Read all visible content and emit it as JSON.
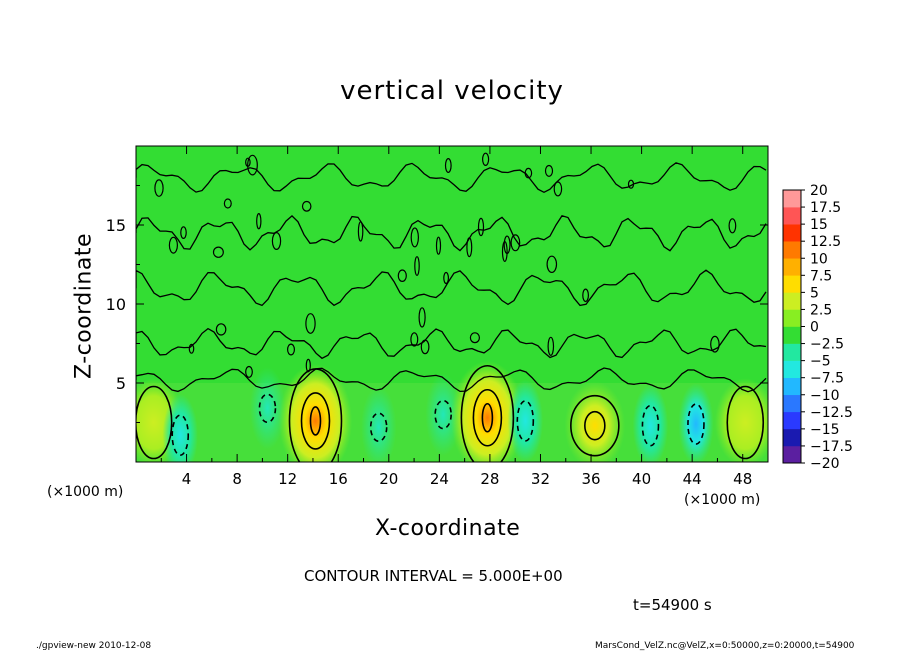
{
  "footer": {
    "left": "./gpview-new  2010-12-08",
    "right": "MarsCond_VelZ.nc@VelZ,x=0:50000,z=0:20000,t=54900"
  },
  "contour_interval": "CONTOUR INTERVAL = 5.000E+00",
  "time_label": "t=54900 s",
  "x_unit": "(×1000 m)",
  "y_unit": "(×1000 m)",
  "colors": {
    "background_green": "#33dd33",
    "palette": [
      "#5b1fa0",
      "#1a1ab0",
      "#2a3aff",
      "#2a78ff",
      "#22b8ff",
      "#22e8e0",
      "#22e8a0",
      "#33dd33",
      "#88ee22",
      "#ccee22",
      "#ffdd00",
      "#ffb000",
      "#ff7a00",
      "#ff3300",
      "#ff5555",
      "#ff9999"
    ]
  },
  "chart_data": {
    "type": "heatmap",
    "title": "vertical velocity",
    "xlabel": "X-coordinate",
    "ylabel": "Z-coordinate",
    "xlim": [
      0,
      50
    ],
    "ylim": [
      0,
      20
    ],
    "x_ticks": [
      4,
      8,
      12,
      16,
      20,
      24,
      28,
      32,
      36,
      40,
      44,
      48
    ],
    "y_ticks": [
      5,
      10,
      15
    ],
    "colorbar": {
      "levels": [
        20,
        17.5,
        15,
        12.5,
        10,
        7.5,
        5,
        2.5,
        0,
        -2.5,
        -5,
        -7.5,
        -10,
        -12.5,
        -15,
        -17.5,
        -20
      ],
      "labels": [
        "20",
        "17.5",
        "15",
        "12.5",
        "10",
        "7.5",
        "5",
        "2.5",
        "0",
        "−2.5",
        "−5",
        "−7.5",
        "−10",
        "−12.5",
        "−15",
        "−17.5",
        "−20"
      ]
    },
    "features": [
      {
        "kind": "updraft",
        "x": 1.4,
        "z": 2.5,
        "value": 5
      },
      {
        "kind": "downdraft",
        "x": 3.5,
        "z": 1.7,
        "value": -5
      },
      {
        "kind": "downdraft",
        "x": 10.4,
        "z": 3.4,
        "value": -2.5
      },
      {
        "kind": "updraft",
        "x": 14.2,
        "z": 2.6,
        "value": 12.5
      },
      {
        "kind": "downdraft",
        "x": 19.2,
        "z": 2.2,
        "value": -2.5
      },
      {
        "kind": "downdraft",
        "x": 24.3,
        "z": 3.0,
        "value": -2.5
      },
      {
        "kind": "updraft",
        "x": 27.8,
        "z": 2.8,
        "value": 12.5
      },
      {
        "kind": "downdraft",
        "x": 30.8,
        "z": 2.6,
        "value": -5
      },
      {
        "kind": "updraft",
        "x": 36.3,
        "z": 2.3,
        "value": 7.5
      },
      {
        "kind": "downdraft",
        "x": 40.7,
        "z": 2.3,
        "value": -5
      },
      {
        "kind": "downdraft",
        "x": 44.3,
        "z": 2.4,
        "value": -7.5
      },
      {
        "kind": "updraft",
        "x": 48.2,
        "z": 2.5,
        "value": 5
      }
    ]
  }
}
